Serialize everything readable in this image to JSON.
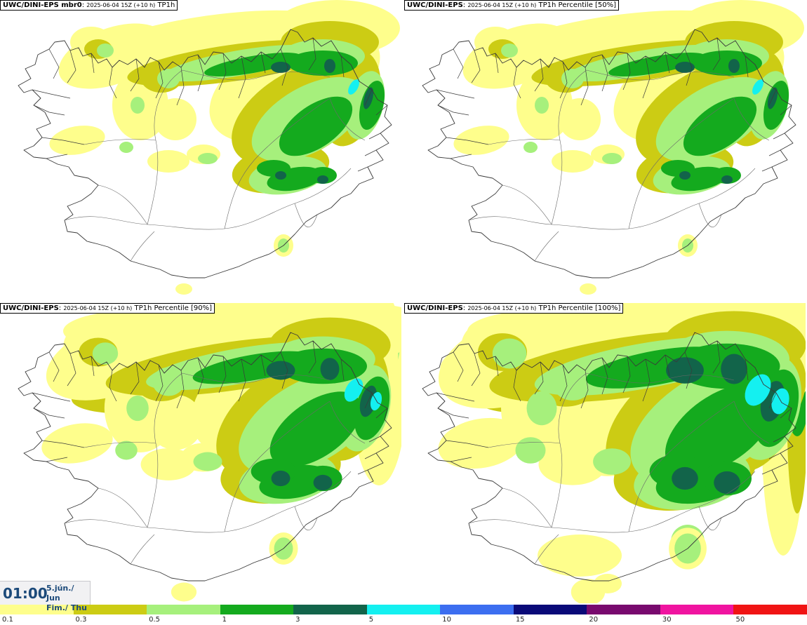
{
  "panels": [
    {
      "model": "UWC/DINI-EPS mbr0",
      "meta": "2025-06-04 15Z (+10 h)",
      "param": "TP1h"
    },
    {
      "model": "UWC/DINI-EPS",
      "meta": "2025-06-04 15Z (+10 h)",
      "param": "TP1h Percentile [50%]"
    },
    {
      "model": "UWC/DINI-EPS",
      "meta": "2025-06-04 15Z (+10 h)",
      "param": "TP1h Percentile [90%]"
    },
    {
      "model": "UWC/DINI-EPS",
      "meta": "2025-06-04 15Z (+10 h)",
      "param": "TP1h Percentile [100%]"
    }
  ],
  "valid_time": {
    "clock": "01:00",
    "date_line1": "5.jún./ Jun",
    "date_line2": "Fim./ Thu"
  },
  "legend": {
    "labels": [
      "0.1",
      "0.3",
      "0.5",
      "1",
      "3",
      "5",
      "10",
      "15",
      "20",
      "30",
      "50"
    ],
    "colors": [
      "#fefe8c",
      "#cccc14",
      "#a6f07c",
      "#14aa1e",
      "#12644a",
      "#14f0f0",
      "#3c6ef0",
      "#0a0a78",
      "#780a6e",
      "#f014a0",
      "#f01414"
    ]
  },
  "colors": {
    "yellow": "#fefe8c",
    "olive": "#cccc14",
    "lightgreen": "#a6f07c",
    "green": "#14aa1e",
    "darkgreen": "#12644a",
    "cyan": "#14f0f0"
  },
  "intensity": [
    "low",
    "low",
    "mid",
    "high"
  ]
}
